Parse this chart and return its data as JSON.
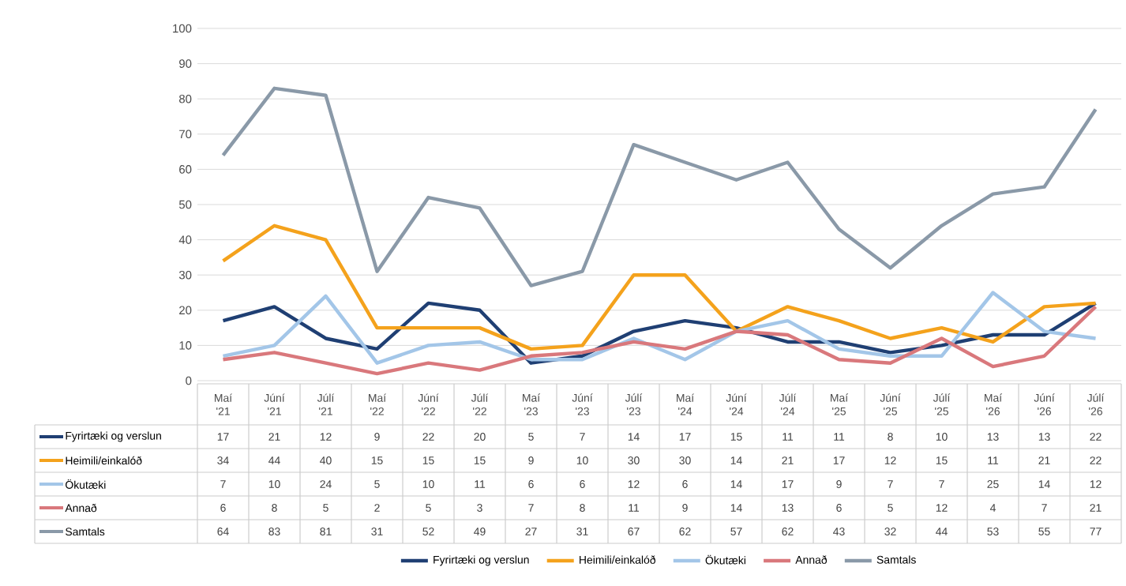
{
  "chart_data": {
    "type": "line",
    "categories": [
      "Maí '21",
      "Júní '21",
      "Júlí '21",
      "Maí '22",
      "Júní '22",
      "Júlí '22",
      "Maí '23",
      "Júní '23",
      "Júlí '23",
      "Maí '24",
      "Júní '24",
      "Júlí '24",
      "Maí '25",
      "Júní '25",
      "Júlí '25",
      "Maí '26",
      "Júní '26",
      "Júlí '26"
    ],
    "series": [
      {
        "name": "Fyrirtæki og verslun",
        "color": "#1f3f73",
        "values": [
          17,
          21,
          12,
          9,
          22,
          20,
          5,
          7,
          14,
          17,
          15,
          11,
          11,
          8,
          10,
          13,
          13,
          22
        ]
      },
      {
        "name": "Heimili/einkalóð",
        "color": "#f4a21c",
        "values": [
          34,
          44,
          40,
          15,
          15,
          15,
          9,
          10,
          30,
          30,
          14,
          21,
          17,
          12,
          15,
          11,
          21,
          22
        ]
      },
      {
        "name": "Ökutæki",
        "color": "#a3c6e8",
        "values": [
          7,
          10,
          24,
          5,
          10,
          11,
          6,
          6,
          12,
          6,
          14,
          17,
          9,
          7,
          7,
          25,
          14,
          12
        ]
      },
      {
        "name": "Annað",
        "color": "#d9787c",
        "values": [
          6,
          8,
          5,
          2,
          5,
          3,
          7,
          8,
          11,
          9,
          14,
          13,
          6,
          5,
          12,
          4,
          7,
          21
        ]
      },
      {
        "name": "Samtals",
        "color": "#8a99a8",
        "values": [
          64,
          83,
          81,
          31,
          52,
          49,
          27,
          31,
          67,
          62,
          57,
          62,
          43,
          32,
          44,
          53,
          55,
          77
        ]
      }
    ],
    "ylim": [
      0,
      100
    ],
    "yticks": [
      0,
      10,
      20,
      30,
      40,
      50,
      60,
      70,
      80,
      90,
      100
    ],
    "grid": "y",
    "legend": "bottom",
    "data_labels": true,
    "marker": "none",
    "line_style": "solid"
  }
}
